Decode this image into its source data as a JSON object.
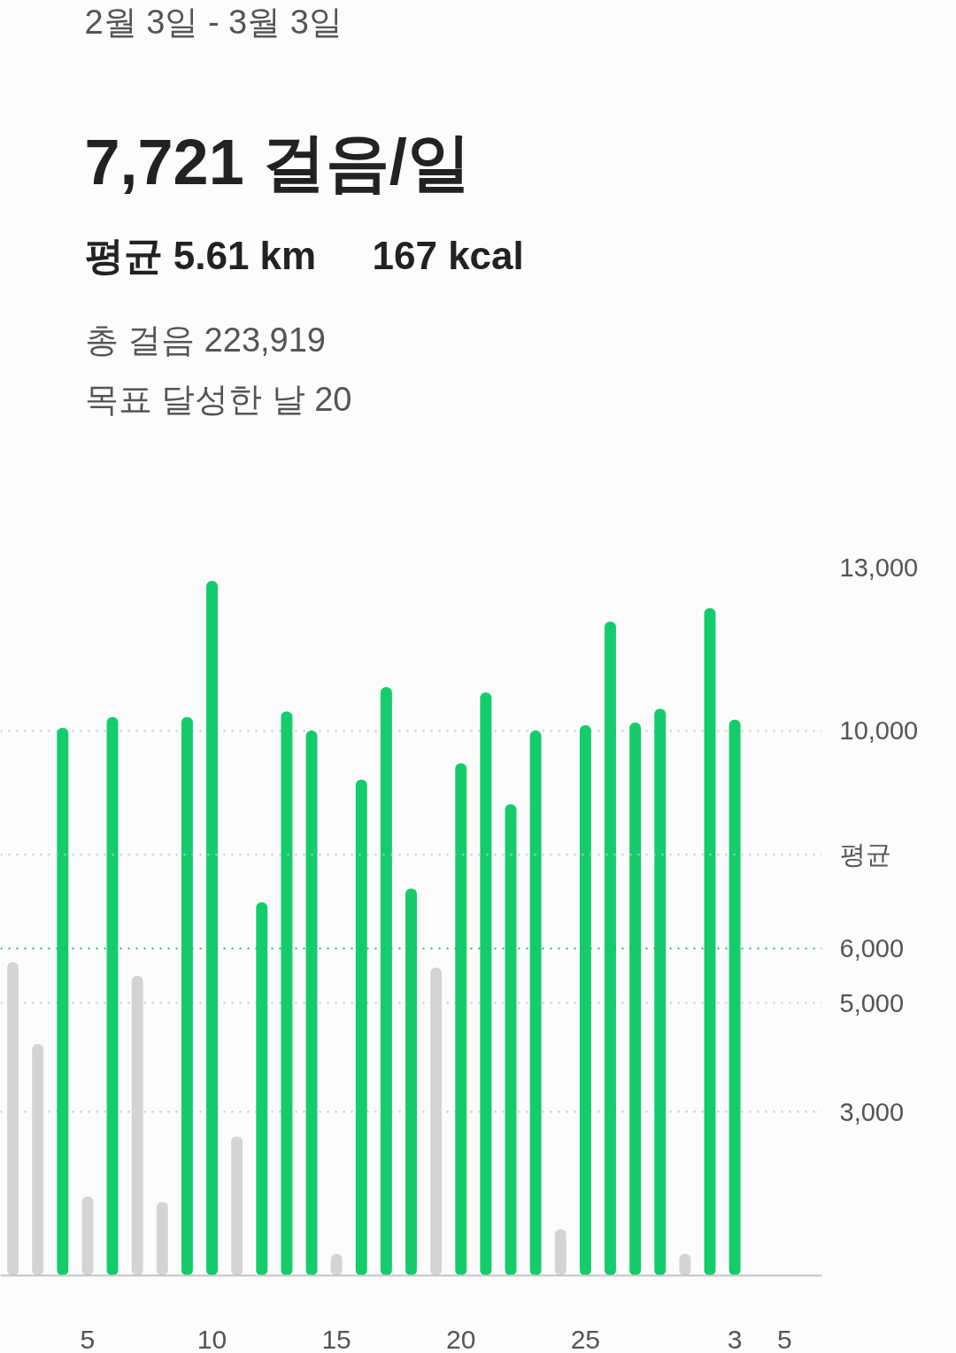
{
  "chart_data": {
    "type": "bar",
    "title": "7,721 걸음/일",
    "subtitle": "2월 3일 - 3월 3일",
    "annotations": [
      "평균 5.61 km",
      "167 kcal",
      "총 걸음 223,919",
      "목표 달성한 날 20"
    ],
    "categories": [
      null,
      null,
      null,
      "5",
      null,
      null,
      null,
      null,
      "10",
      null,
      null,
      null,
      null,
      "15",
      null,
      null,
      null,
      null,
      "20",
      null,
      null,
      null,
      null,
      "25",
      null,
      null,
      null,
      null,
      null,
      "3",
      null,
      "5",
      null
    ],
    "values": [
      5750,
      4250,
      10050,
      1450,
      10250,
      5500,
      1350,
      10250,
      12750,
      2550,
      6850,
      10350,
      10000,
      400,
      9100,
      10800,
      7100,
      5650,
      9400,
      10700,
      8650,
      10000,
      850,
      10100,
      12000,
      10150,
      10400,
      400,
      12250,
      10200,
      null,
      null,
      null
    ],
    "colors": [
      "#d4d4d4",
      "#d4d4d4",
      "#14cc6c",
      "#d4d4d4",
      "#14cc6c",
      "#d4d4d4",
      "#d4d4d4",
      "#14cc6c",
      "#14cc6c",
      "#d4d4d4",
      "#14cc6c",
      "#14cc6c",
      "#14cc6c",
      "#d4d4d4",
      "#14cc6c",
      "#14cc6c",
      "#14cc6c",
      "#d4d4d4",
      "#14cc6c",
      "#14cc6c",
      "#14cc6c",
      "#14cc6c",
      "#d4d4d4",
      "#14cc6c",
      "#14cc6c",
      "#14cc6c",
      "#14cc6c",
      "#d4d4d4",
      "#14cc6c",
      "#14cc6c",
      null,
      null,
      null
    ],
    "ylim": [
      0,
      13000
    ],
    "yticks": [
      {
        "value": 3000,
        "label": "3,000"
      },
      {
        "value": 5000,
        "label": "5,000"
      },
      {
        "value": 10000,
        "label": "10,000"
      },
      {
        "value": 13000,
        "label": "13,000"
      }
    ],
    "ref_lines": [
      {
        "axis": "y",
        "value": 7721,
        "label": "평균",
        "line_style": "dotted"
      },
      {
        "axis": "y",
        "value": 6000,
        "label": "6,000",
        "color": "#1fb866",
        "line_style": "dotted"
      }
    ],
    "grid": "y"
  }
}
